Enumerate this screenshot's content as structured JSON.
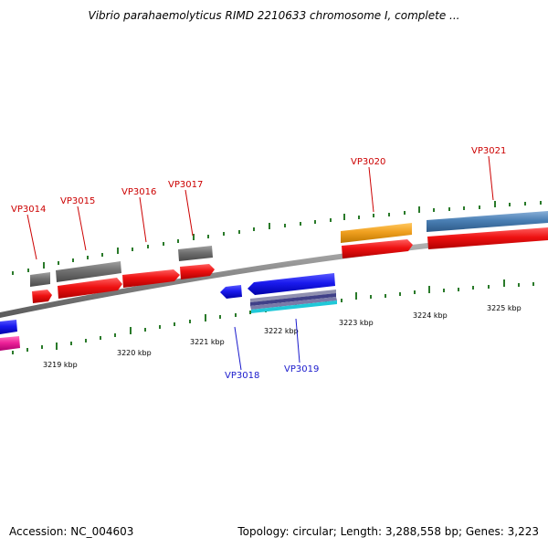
{
  "title": "Vibrio parahaemolyticus RIMD 2210633 chromosome I, complete ...",
  "footer": {
    "accession": "Accession: NC_004603",
    "summary": "Topology: circular; Length: 3,288,558 bp; Genes: 3,223"
  },
  "scale": {
    "ticks": [
      "3219 kbp",
      "3220 kbp",
      "3221 kbp",
      "3222 kbp",
      "3223 kbp",
      "3224 kbp",
      "3225 kbp"
    ]
  },
  "genes": {
    "forward": [
      "VP3014",
      "VP3015",
      "VP3016",
      "VP3017",
      "VP3020",
      "VP3021"
    ],
    "reverse": [
      "VP3018",
      "VP3019"
    ]
  },
  "colors": {
    "backbone": "#8a8a8a",
    "forward_cds": "#ee1111",
    "reverse_cds": "#1a1aee",
    "gene_grey": "#707070",
    "gene_orange": "#f0a020",
    "gene_steelblue": "#4a7fb4",
    "gene_cyan": "#20c8d8",
    "gene_magenta": "#ee2299",
    "tick_green": "#2a7a2a",
    "forward_label": "#cc0000",
    "reverse_label": "#1a1acc"
  }
}
